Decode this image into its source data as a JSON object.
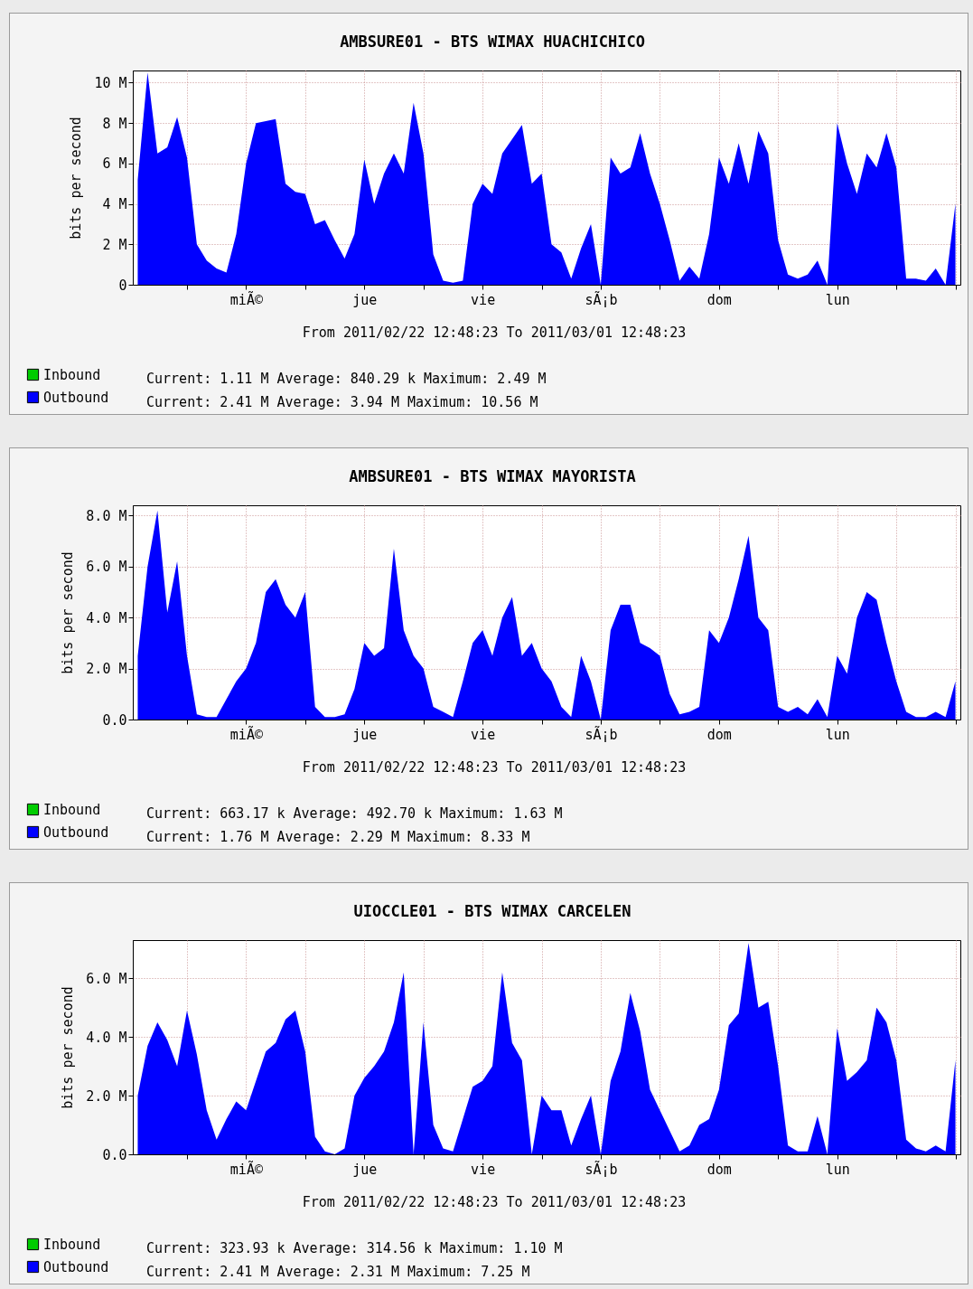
{
  "chart_data": [
    {
      "type": "area",
      "title": "AMBSURE01 - BTS WIMAX HUACHICHICO",
      "ylabel": "bits per second",
      "grid": true,
      "legend": "bottom left",
      "categories": [
        null,
        null,
        null,
        null,
        null,
        null,
        null,
        null,
        null,
        null,
        null,
        "miÃ©",
        null,
        null,
        null,
        null,
        null,
        null,
        null,
        null,
        null,
        null,
        null,
        "jue",
        null,
        null,
        null,
        null,
        null,
        null,
        null,
        null,
        null,
        null,
        null,
        "vie",
        null,
        null,
        null,
        null,
        null,
        null,
        null,
        null,
        null,
        null,
        null,
        "sÃ¡b",
        null,
        null,
        null,
        null,
        null,
        null,
        null,
        null,
        null,
        null,
        null,
        "dom",
        null,
        null,
        null,
        null,
        null,
        null,
        null,
        null,
        null,
        null,
        null,
        "lun",
        null,
        null,
        null,
        null,
        null,
        null,
        null,
        null,
        null,
        null,
        null,
        null
      ],
      "ylim": [
        0,
        10.6
      ],
      "yticks": [
        0,
        {
          "value": 2,
          "label": "2 M"
        },
        {
          "value": 4,
          "label": "4 M"
        },
        {
          "value": 6,
          "label": "6 M"
        },
        {
          "value": 8,
          "label": "8 M"
        },
        {
          "value": 10,
          "label": "10 M"
        }
      ],
      "series": [
        {
          "name": "Inbound",
          "color": "#00cc00",
          "values": [
            null,
            null,
            null,
            null,
            null,
            null,
            null,
            null,
            null,
            null,
            null,
            null,
            null,
            null,
            null,
            null,
            null,
            null,
            null,
            null,
            null,
            null,
            null,
            null,
            null,
            null,
            null,
            null,
            null,
            null,
            null,
            null,
            null,
            null,
            null,
            null,
            null,
            null,
            null,
            null,
            null,
            null,
            null,
            null,
            null,
            null,
            null,
            null,
            null,
            null,
            null,
            null,
            null,
            null,
            null,
            null,
            null,
            null,
            null,
            null,
            null,
            null,
            null,
            null,
            null,
            null,
            null,
            null,
            null,
            null,
            null,
            null,
            null,
            null,
            null,
            null,
            null,
            null,
            null,
            null,
            null,
            null,
            null,
            null
          ]
        },
        {
          "name": "Outbound",
          "color": "#0000ff",
          "values": [
            5.2,
            10.5,
            6.5,
            6.8,
            8.3,
            6.3,
            2,
            1.2,
            0.8,
            0.6,
            2.5,
            6,
            8,
            8.1,
            8.2,
            5,
            4.6,
            4.5,
            3,
            3.2,
            2.2,
            1.3,
            2.5,
            6.2,
            4,
            5.5,
            6.5,
            5.5,
            9,
            6.5,
            1.5,
            0.2,
            0.1,
            0.2,
            4,
            5,
            4.5,
            6.5,
            7.2,
            7.9,
            5,
            5.5,
            2,
            1.6,
            0.3,
            1.8,
            3,
            0,
            6.3,
            5.5,
            5.8,
            7.5,
            5.5,
            4,
            2.2,
            0.2,
            0.9,
            0.3,
            2.5,
            6.3,
            5,
            7,
            5,
            7.6,
            6.5,
            2.2,
            0.5,
            0.3,
            0.5,
            1.2,
            0,
            8,
            6,
            4.5,
            6.5,
            5.8,
            7.5,
            5.8,
            0.3,
            0.3,
            0.2,
            0.8,
            0,
            4
          ]
        }
      ],
      "annotations": [
        "From 2011/02/22 12:48:23 To 2011/03/01 12:48:23",
        "Current: 1.11 M Average: 840.29 k Maximum: 2.49 M",
        "Current: 2.41 M Average: 3.94 M Maximum: 10.56 M"
      ]
    },
    {
      "type": "area",
      "title": "AMBSURE01 - BTS WIMAX MAYORISTA",
      "ylabel": "bits per second",
      "grid": true,
      "legend": "bottom left",
      "categories": [
        null,
        null,
        null,
        null,
        null,
        null,
        null,
        null,
        null,
        null,
        null,
        "miÃ©",
        null,
        null,
        null,
        null,
        null,
        null,
        null,
        null,
        null,
        null,
        null,
        "jue",
        null,
        null,
        null,
        null,
        null,
        null,
        null,
        null,
        null,
        null,
        null,
        "vie",
        null,
        null,
        null,
        null,
        null,
        null,
        null,
        null,
        null,
        null,
        null,
        "sÃ¡b",
        null,
        null,
        null,
        null,
        null,
        null,
        null,
        null,
        null,
        null,
        null,
        "dom",
        null,
        null,
        null,
        null,
        null,
        null,
        null,
        null,
        null,
        null,
        null,
        "lun",
        null,
        null,
        null,
        null,
        null,
        null,
        null,
        null,
        null,
        null,
        null,
        null
      ],
      "ylim": [
        0,
        8.4
      ],
      "yticks": [
        {
          "value": 0,
          "label": "0.0"
        },
        {
          "value": 2,
          "label": "2.0 M"
        },
        {
          "value": 4,
          "label": "4.0 M"
        },
        {
          "value": 6,
          "label": "6.0 M"
        },
        {
          "value": 8,
          "label": "8.0 M"
        }
      ],
      "series": [
        {
          "name": "Inbound",
          "color": "#00cc00",
          "values": [
            null,
            null,
            null,
            null,
            null,
            null,
            null,
            null,
            null,
            null,
            null,
            null,
            null,
            null,
            null,
            null,
            null,
            null,
            null,
            null,
            null,
            null,
            null,
            null,
            null,
            null,
            null,
            null,
            null,
            null,
            null,
            null,
            null,
            null,
            null,
            null,
            null,
            null,
            null,
            null,
            null,
            null,
            null,
            null,
            null,
            null,
            null,
            null,
            null,
            null,
            null,
            null,
            null,
            null,
            null,
            null,
            null,
            null,
            null,
            null,
            null,
            null,
            null,
            null,
            null,
            null,
            null,
            null,
            null,
            null,
            null,
            null,
            null,
            null,
            null,
            null,
            null,
            null,
            null,
            null,
            null,
            null,
            null,
            null
          ]
        },
        {
          "name": "Outbound",
          "color": "#0000ff",
          "values": [
            2.5,
            6,
            8.2,
            4.2,
            6.2,
            2.5,
            0.2,
            0.1,
            0.1,
            0.8,
            1.5,
            2,
            3,
            5,
            5.5,
            4.5,
            4,
            5,
            0.5,
            0.1,
            0.1,
            0.2,
            1.2,
            3,
            2.5,
            2.8,
            6.7,
            3.5,
            2.5,
            2,
            0.5,
            0.3,
            0.1,
            1.5,
            3,
            3.5,
            2.5,
            4,
            4.8,
            2.5,
            3,
            2,
            1.5,
            0.5,
            0.1,
            2.5,
            1.5,
            0,
            3.5,
            4.5,
            4.5,
            3,
            2.8,
            2.5,
            1,
            0.2,
            0.3,
            0.5,
            3.5,
            3,
            4,
            5.5,
            7.2,
            4,
            3.5,
            0.5,
            0.3,
            0.5,
            0.2,
            0.8,
            0.1,
            2.5,
            1.8,
            4,
            5,
            4.7,
            3,
            1.5,
            0.3,
            0.1,
            0.1,
            0.3,
            0.1,
            1.5
          ]
        }
      ],
      "annotations": [
        "From 2011/02/22 12:48:23 To 2011/03/01 12:48:23",
        "Current: 663.17 k Average: 492.70 k Maximum: 1.63 M",
        "Current: 1.76 M Average: 2.29 M Maximum: 8.33 M"
      ]
    },
    {
      "type": "area",
      "title": "UIOCCLE01 - BTS WIMAX CARCELEN",
      "ylabel": "bits per second",
      "grid": true,
      "legend": "bottom left",
      "categories": [
        null,
        null,
        null,
        null,
        null,
        null,
        null,
        null,
        null,
        null,
        null,
        "miÃ©",
        null,
        null,
        null,
        null,
        null,
        null,
        null,
        null,
        null,
        null,
        null,
        "jue",
        null,
        null,
        null,
        null,
        null,
        null,
        null,
        null,
        null,
        null,
        null,
        "vie",
        null,
        null,
        null,
        null,
        null,
        null,
        null,
        null,
        null,
        null,
        null,
        "sÃ¡b",
        null,
        null,
        null,
        null,
        null,
        null,
        null,
        null,
        null,
        null,
        null,
        "dom",
        null,
        null,
        null,
        null,
        null,
        null,
        null,
        null,
        null,
        null,
        null,
        "lun",
        null,
        null,
        null,
        null,
        null,
        null,
        null,
        null,
        null,
        null,
        null,
        null
      ],
      "ylim": [
        0,
        7.3
      ],
      "yticks": [
        {
          "value": 0,
          "label": "0.0"
        },
        {
          "value": 2,
          "label": "2.0 M"
        },
        {
          "value": 4,
          "label": "4.0 M"
        },
        {
          "value": 6,
          "label": "6.0 M"
        }
      ],
      "series": [
        {
          "name": "Inbound",
          "color": "#00cc00",
          "values": [
            null,
            null,
            null,
            null,
            null,
            null,
            null,
            null,
            null,
            null,
            null,
            null,
            null,
            null,
            null,
            null,
            null,
            null,
            null,
            null,
            null,
            null,
            null,
            null,
            null,
            null,
            null,
            null,
            null,
            null,
            null,
            null,
            null,
            null,
            null,
            null,
            null,
            null,
            null,
            null,
            null,
            null,
            null,
            null,
            null,
            null,
            null,
            null,
            null,
            null,
            null,
            null,
            null,
            null,
            null,
            null,
            null,
            null,
            null,
            null,
            null,
            null,
            null,
            null,
            null,
            null,
            null,
            null,
            null,
            null,
            null,
            null,
            null,
            null,
            null,
            null,
            null,
            null,
            null,
            null,
            null,
            null,
            null,
            null
          ]
        },
        {
          "name": "Outbound",
          "color": "#0000ff",
          "values": [
            2,
            3.7,
            4.5,
            3.9,
            3,
            4.9,
            3.4,
            1.5,
            0.5,
            1.2,
            1.8,
            1.5,
            2.5,
            3.5,
            3.8,
            4.6,
            4.9,
            3.5,
            0.6,
            0.1,
            0,
            0.2,
            2,
            2.6,
            3,
            3.5,
            4.5,
            6.2,
            0,
            4.5,
            1,
            0.2,
            0.1,
            1.2,
            2.3,
            2.5,
            3,
            6.2,
            3.8,
            3.2,
            0,
            2,
            1.5,
            1.5,
            0.3,
            1.2,
            2,
            0,
            2.5,
            3.5,
            5.5,
            4.2,
            2.2,
            1.5,
            0.8,
            0.1,
            0.3,
            1,
            1.2,
            2.2,
            4.4,
            4.8,
            7.2,
            5,
            5.2,
            3,
            0.3,
            0.1,
            0.1,
            1.3,
            0,
            4.3,
            2.5,
            2.8,
            3.2,
            5,
            4.5,
            3.2,
            0.5,
            0.2,
            0.1,
            0.3,
            0.1,
            3.2
          ]
        }
      ],
      "annotations": [
        "From 2011/02/22 12:48:23 To 2011/03/01 12:48:23",
        "Current: 323.93 k Average: 314.56 k Maximum: 1.10 M",
        "Current: 2.41 M Average: 2.31 M Maximum: 7.25 M"
      ]
    }
  ]
}
